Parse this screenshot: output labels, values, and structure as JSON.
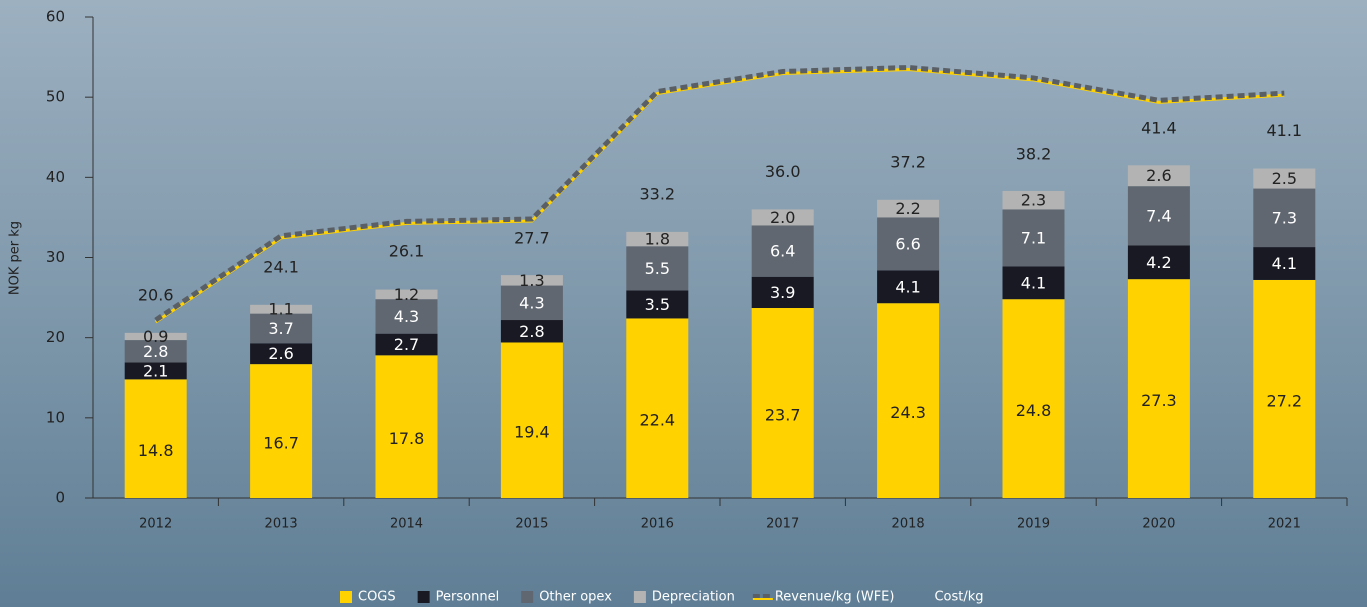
{
  "chart_data": {
    "type": "bar",
    "y_label": "NOK per kg",
    "categories": [
      "2012",
      "2013",
      "2014",
      "2015",
      "2016",
      "2017",
      "2018",
      "2019",
      "2020",
      "2021"
    ],
    "ylim": [
      0,
      60
    ],
    "yticks": [
      0,
      10,
      20,
      30,
      40,
      50,
      60
    ],
    "series": [
      {
        "name": "COGS",
        "type": "bar",
        "color": "#ffd200",
        "label_color": "#222222",
        "values": [
          14.8,
          16.7,
          17.8,
          19.4,
          22.4,
          23.7,
          24.3,
          24.8,
          27.3,
          27.2
        ]
      },
      {
        "name": "Personnel",
        "type": "bar",
        "color": "#191923",
        "label_color": "#ffffff",
        "values": [
          2.1,
          2.6,
          2.7,
          2.8,
          3.5,
          3.9,
          4.1,
          4.1,
          4.2,
          4.1
        ]
      },
      {
        "name": "Other opex",
        "type": "bar",
        "color": "#606770",
        "label_color": "#ffffff",
        "values": [
          2.8,
          3.7,
          4.3,
          4.3,
          5.5,
          6.4,
          6.6,
          7.1,
          7.4,
          7.3
        ]
      },
      {
        "name": "Depreciation",
        "type": "bar",
        "color": "#b3b3b3",
        "label_color": "#222222",
        "values": [
          0.9,
          1.1,
          1.2,
          1.3,
          1.8,
          2.0,
          2.2,
          2.3,
          2.6,
          2.5
        ],
        "value_labels": [
          "0.9",
          "1.1",
          "1.2",
          "1.3",
          "1.8",
          "2.0",
          "2.2",
          "2.3",
          "2.6",
          "2.5"
        ]
      },
      {
        "name": "Revenue/kg (WFE)",
        "type": "line",
        "color": "#5a5f66",
        "values": [
          22.2,
          32.7,
          34.5,
          34.8,
          50.7,
          53.2,
          53.7,
          52.4,
          49.6,
          50.5
        ]
      },
      {
        "name": "Cost/kg",
        "type": "label",
        "color": "#222222",
        "values": [
          20.6,
          24.1,
          26.1,
          27.7,
          33.2,
          36.0,
          37.2,
          38.2,
          41.4,
          41.1
        ],
        "value_labels": [
          "20.6",
          "24.1",
          "26.1",
          "27.7",
          "33.2",
          "36.0",
          "37.2",
          "38.2",
          "41.4",
          "41.1"
        ]
      }
    ]
  }
}
